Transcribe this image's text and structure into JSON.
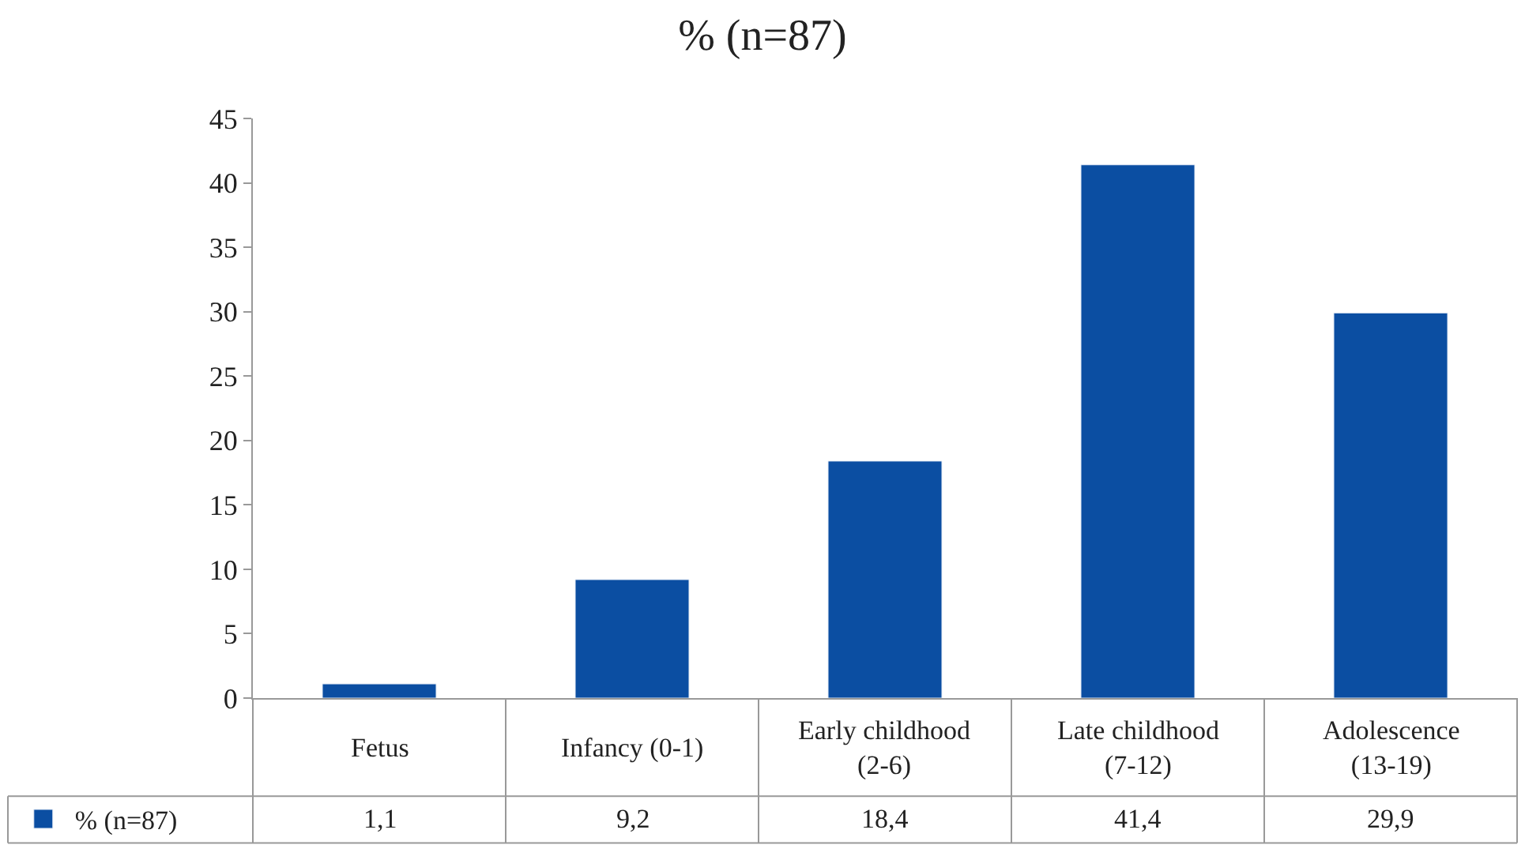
{
  "chart_data": {
    "type": "bar",
    "title": "% (n=87)",
    "categories": [
      "Fetus",
      "Infancy (0-1)",
      "Early childhood (2-6)",
      "Late childhood (7-12)",
      "Adolescence (13-19)"
    ],
    "series": [
      {
        "name": "% (n=87)",
        "color": "#0b4ea2",
        "values": [
          1.1,
          9.2,
          18.4,
          41.4,
          29.9
        ],
        "value_labels": [
          "1,1",
          "9,2",
          "18,4",
          "41,4",
          "29,9"
        ]
      }
    ],
    "ylim": [
      0,
      45
    ],
    "yticks": [
      0,
      5,
      10,
      15,
      20,
      25,
      30,
      35,
      40,
      45
    ],
    "legend": "bottom left"
  }
}
